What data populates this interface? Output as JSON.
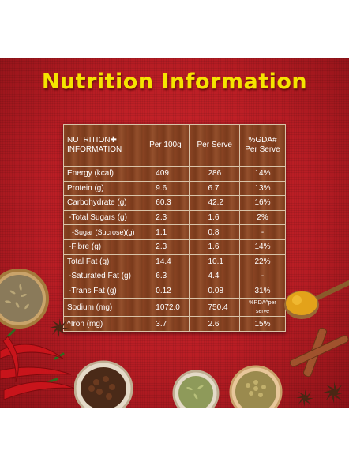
{
  "title": "Nutrition Information",
  "table": {
    "headers": [
      "NUTRITION✚ INFORMATION",
      "Per 100g",
      "Per Serve",
      "%GDA# Per Serve"
    ],
    "rows": [
      {
        "label": "Energy (kcal)",
        "per100": "409",
        "perServe": "286",
        "gda": "14%"
      },
      {
        "label": "Protein (g)",
        "per100": "9.6",
        "perServe": "6.7",
        "gda": "13%"
      },
      {
        "label": "Carbohydrate (g)",
        "per100": "60.3",
        "perServe": "42.2",
        "gda": "16%"
      },
      {
        "label": "-Total Sugars (g)",
        "per100": "2.3",
        "perServe": "1.6",
        "gda": "2%"
      },
      {
        "label": "-Sugar (Sucrose)(g)",
        "per100": "1.1",
        "perServe": "0.8",
        "gda": "-"
      },
      {
        "label": "-Fibre (g)",
        "per100": "2.3",
        "perServe": "1.6",
        "gda": "14%"
      },
      {
        "label": "Total Fat (g)",
        "per100": "14.4",
        "perServe": "10.1",
        "gda": "22%"
      },
      {
        "label": "-Saturated Fat (g)",
        "per100": "6.3",
        "perServe": "4.4",
        "gda": "-"
      },
      {
        "label": "-Trans Fat (g)",
        "per100": "0.12",
        "perServe": "0.08",
        "gda": "31%"
      },
      {
        "label": "Sodium (mg)",
        "per100": "1072.0",
        "perServe": "750.4",
        "gda": "%RDA^per serve"
      },
      {
        "label": "^Iron (mg)",
        "per100": "3.7",
        "perServe": "2.6",
        "gda": "15%"
      }
    ]
  },
  "colors": {
    "background": "#b81d24",
    "title": "#f5e400",
    "table": "#8a4423"
  },
  "decorations": [
    "cumin-bowl",
    "red-chillies",
    "cloves-bowl",
    "fennel-bowl",
    "coriander-bowl",
    "turmeric-spoon",
    "cinnamon-sticks",
    "star-anise"
  ]
}
